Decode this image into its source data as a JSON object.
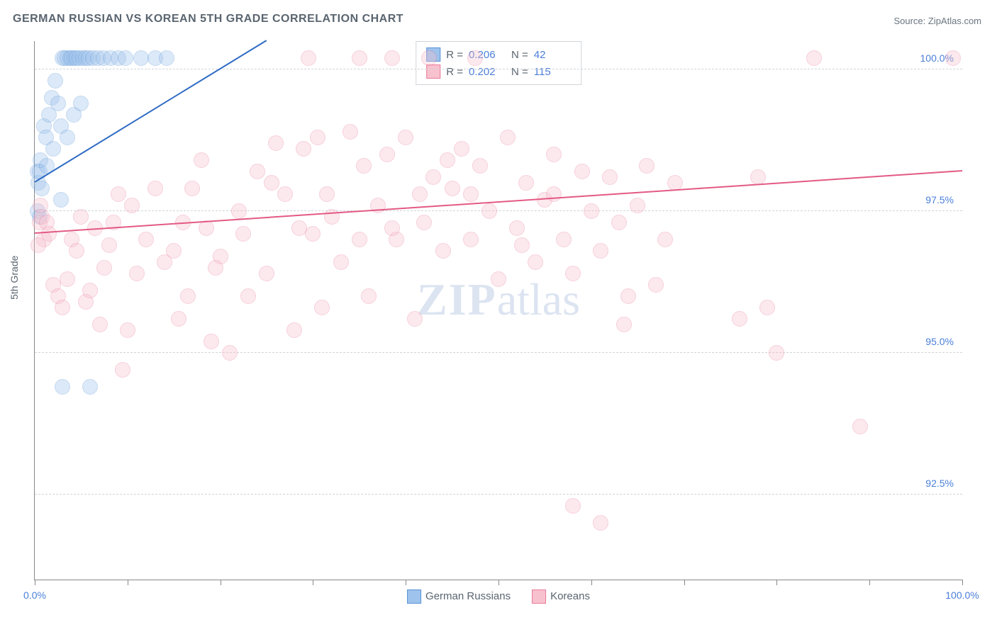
{
  "title": "GERMAN RUSSIAN VS KOREAN 5TH GRADE CORRELATION CHART",
  "source": "Source: ZipAtlas.com",
  "ylabel": "5th Grade",
  "watermark": {
    "bold": "ZIP",
    "rest": "atlas"
  },
  "chart": {
    "type": "scatter",
    "xlim": [
      0,
      100
    ],
    "ylim": [
      91,
      100.5
    ],
    "background_color": "#ffffff",
    "grid_color": "#d0d4d8",
    "axis_color": "#888888",
    "tick_label_color": "#4a7fd8",
    "tick_fontsize": 14,
    "yticks": [
      92.5,
      95.0,
      97.5,
      100.0
    ],
    "ytick_labels": [
      "92.5%",
      "95.0%",
      "97.5%",
      "100.0%"
    ],
    "xticks": [
      0,
      10,
      20,
      30,
      40,
      50,
      60,
      70,
      80,
      90,
      100
    ],
    "xtick_labels_shown": {
      "0": "0.0%",
      "100": "100.0%"
    },
    "marker_radius": 10,
    "marker_opacity": 0.35,
    "series": [
      {
        "name": "German Russians",
        "fill": "#9ec3ec",
        "stroke": "#5a93d6",
        "trend": {
          "x1": 0,
          "y1": 98.0,
          "x2": 25,
          "y2": 100.5,
          "color": "#2f6bc4",
          "width": 2
        },
        "R": "0.206",
        "N": "42",
        "points": [
          [
            0.3,
            98.2
          ],
          [
            0.4,
            98.0
          ],
          [
            0.5,
            98.2
          ],
          [
            0.6,
            98.4
          ],
          [
            0.8,
            97.9
          ],
          [
            0.5,
            97.4
          ],
          [
            0.3,
            97.5
          ],
          [
            1.0,
            99.0
          ],
          [
            1.2,
            98.8
          ],
          [
            1.5,
            99.2
          ],
          [
            1.8,
            99.5
          ],
          [
            2.0,
            98.6
          ],
          [
            1.3,
            98.3
          ],
          [
            2.2,
            99.8
          ],
          [
            2.5,
            99.4
          ],
          [
            2.8,
            99.0
          ],
          [
            3.0,
            100.2
          ],
          [
            3.2,
            100.2
          ],
          [
            3.5,
            100.2
          ],
          [
            3.8,
            100.2
          ],
          [
            4.0,
            100.2
          ],
          [
            4.3,
            100.2
          ],
          [
            4.5,
            100.2
          ],
          [
            4.8,
            100.2
          ],
          [
            5.2,
            100.2
          ],
          [
            5.5,
            100.2
          ],
          [
            5.8,
            100.2
          ],
          [
            6.3,
            100.2
          ],
          [
            6.8,
            100.2
          ],
          [
            7.4,
            100.2
          ],
          [
            8.2,
            100.2
          ],
          [
            9.0,
            100.2
          ],
          [
            9.8,
            100.2
          ],
          [
            11.5,
            100.2
          ],
          [
            13.0,
            100.2
          ],
          [
            14.2,
            100.2
          ],
          [
            3.0,
            94.4
          ],
          [
            6.0,
            94.4
          ],
          [
            3.5,
            98.8
          ],
          [
            4.2,
            99.2
          ],
          [
            5.0,
            99.4
          ],
          [
            2.8,
            97.7
          ]
        ]
      },
      {
        "name": "Koreans",
        "fill": "#f8c1ce",
        "stroke": "#e87b9b",
        "trend": {
          "x1": 0,
          "y1": 97.1,
          "x2": 100,
          "y2": 98.2,
          "color": "#e35a84",
          "width": 2
        },
        "R": "0.202",
        "N": "115",
        "points": [
          [
            0.5,
            97.3
          ],
          [
            0.8,
            97.4
          ],
          [
            1.0,
            97.0
          ],
          [
            1.3,
            97.3
          ],
          [
            1.5,
            97.1
          ],
          [
            0.4,
            96.9
          ],
          [
            0.6,
            97.6
          ],
          [
            2.0,
            96.2
          ],
          [
            2.5,
            96.0
          ],
          [
            3.0,
            95.8
          ],
          [
            3.5,
            96.3
          ],
          [
            4.0,
            97.0
          ],
          [
            4.5,
            96.8
          ],
          [
            5.0,
            97.4
          ],
          [
            5.5,
            95.9
          ],
          [
            6.0,
            96.1
          ],
          [
            6.5,
            97.2
          ],
          [
            7.0,
            95.5
          ],
          [
            7.5,
            96.5
          ],
          [
            8.0,
            96.9
          ],
          [
            8.5,
            97.3
          ],
          [
            9.0,
            97.8
          ],
          [
            9.5,
            94.7
          ],
          [
            10.0,
            95.4
          ],
          [
            10.5,
            97.6
          ],
          [
            11.0,
            96.4
          ],
          [
            12.0,
            97.0
          ],
          [
            13.0,
            97.9
          ],
          [
            14.0,
            96.6
          ],
          [
            15.0,
            96.8
          ],
          [
            15.5,
            95.6
          ],
          [
            16.0,
            97.3
          ],
          [
            17.0,
            97.9
          ],
          [
            18.0,
            98.4
          ],
          [
            18.5,
            97.2
          ],
          [
            19.0,
            95.2
          ],
          [
            20.0,
            96.7
          ],
          [
            21.0,
            95.0
          ],
          [
            22.0,
            97.5
          ],
          [
            23.0,
            96.0
          ],
          [
            24.0,
            98.2
          ],
          [
            25.0,
            96.4
          ],
          [
            26.0,
            98.7
          ],
          [
            27.0,
            97.8
          ],
          [
            28.0,
            95.4
          ],
          [
            29.0,
            98.6
          ],
          [
            29.5,
            100.2
          ],
          [
            30.0,
            97.1
          ],
          [
            30.5,
            98.8
          ],
          [
            31.0,
            95.8
          ],
          [
            32.0,
            97.4
          ],
          [
            33.0,
            96.6
          ],
          [
            34.0,
            98.9
          ],
          [
            35.0,
            100.2
          ],
          [
            35.5,
            98.3
          ],
          [
            36.0,
            96.0
          ],
          [
            37.0,
            97.6
          ],
          [
            38.0,
            98.5
          ],
          [
            38.5,
            100.2
          ],
          [
            39.0,
            97.0
          ],
          [
            40.0,
            98.8
          ],
          [
            41.0,
            95.6
          ],
          [
            42.0,
            97.3
          ],
          [
            42.5,
            100.2
          ],
          [
            43.0,
            98.1
          ],
          [
            44.0,
            96.8
          ],
          [
            45.0,
            97.9
          ],
          [
            46.0,
            98.6
          ],
          [
            47.0,
            97.0
          ],
          [
            47.5,
            100.2
          ],
          [
            48.0,
            98.3
          ],
          [
            49.0,
            97.5
          ],
          [
            50.0,
            96.3
          ],
          [
            51.0,
            98.8
          ],
          [
            52.0,
            97.2
          ],
          [
            53.0,
            98.0
          ],
          [
            54.0,
            96.6
          ],
          [
            55.0,
            97.7
          ],
          [
            56.0,
            98.5
          ],
          [
            57.0,
            97.0
          ],
          [
            58.0,
            96.4
          ],
          [
            59.0,
            98.2
          ],
          [
            60.0,
            97.5
          ],
          [
            61.0,
            96.8
          ],
          [
            62.0,
            98.1
          ],
          [
            63.0,
            97.3
          ],
          [
            63.5,
            95.5
          ],
          [
            64.0,
            96.0
          ],
          [
            65.0,
            97.6
          ],
          [
            66.0,
            98.3
          ],
          [
            67.0,
            96.2
          ],
          [
            68.0,
            97.0
          ],
          [
            69.0,
            98.0
          ],
          [
            76.0,
            95.6
          ],
          [
            78.0,
            98.1
          ],
          [
            79.0,
            95.8
          ],
          [
            80.0,
            95.0
          ],
          [
            84.0,
            100.2
          ],
          [
            89.0,
            93.7
          ],
          [
            99.0,
            100.2
          ],
          [
            58.0,
            92.3
          ],
          [
            61.0,
            92.0
          ],
          [
            56.0,
            97.8
          ],
          [
            52.5,
            96.9
          ],
          [
            47.0,
            97.8
          ],
          [
            44.5,
            98.4
          ],
          [
            41.5,
            97.8
          ],
          [
            38.5,
            97.2
          ],
          [
            35.0,
            97.0
          ],
          [
            31.5,
            97.8
          ],
          [
            28.5,
            97.2
          ],
          [
            25.5,
            98.0
          ],
          [
            22.5,
            97.1
          ],
          [
            19.5,
            96.5
          ],
          [
            16.5,
            96.0
          ]
        ]
      }
    ]
  },
  "legend_top": {
    "rows": [
      {
        "sw_fill": "#9ec3ec",
        "sw_stroke": "#5a93d6",
        "r_label": "R =",
        "r_val": "0.206",
        "n_label": "N =",
        "n_val": "42"
      },
      {
        "sw_fill": "#f8c1ce",
        "sw_stroke": "#e87b9b",
        "r_label": "R =",
        "r_val": "0.202",
        "n_label": "N =",
        "n_val": "115"
      }
    ]
  },
  "legend_bottom": [
    {
      "sw_fill": "#9ec3ec",
      "sw_stroke": "#5a93d6",
      "label": "German Russians"
    },
    {
      "sw_fill": "#f8c1ce",
      "sw_stroke": "#e87b9b",
      "label": "Koreans"
    }
  ]
}
